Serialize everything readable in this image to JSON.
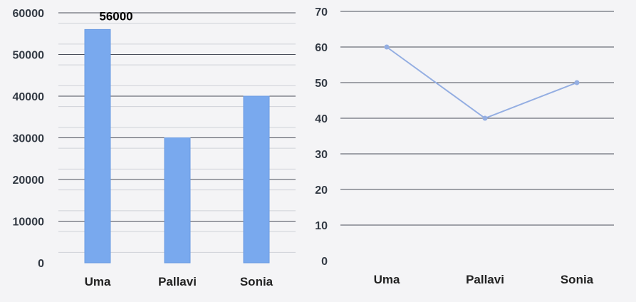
{
  "chart_data": [
    {
      "type": "bar",
      "categories": [
        "Uma",
        "Pallavi",
        "Sonia"
      ],
      "values": [
        56000,
        30000,
        40000
      ],
      "ylim": [
        0,
        60000
      ],
      "yticks": [
        "0",
        "10000",
        "20000",
        "30000",
        "40000",
        "50000",
        "60000"
      ],
      "data_labels": [
        "56000",
        "",
        ""
      ],
      "colors": {
        "bar": "#79a9ee",
        "bar_edge": "#6c9ce3",
        "grid": "#4a4e5a"
      },
      "grid": true,
      "legend": "none"
    },
    {
      "type": "line",
      "categories": [
        "Uma",
        "Pallavi",
        "Sonia"
      ],
      "values": [
        60,
        40,
        50
      ],
      "ylim": [
        0,
        70
      ],
      "yticks": [
        "0",
        "10",
        "20",
        "30",
        "40",
        "50",
        "60",
        "70"
      ],
      "colors": {
        "line": "#94aee2",
        "marker": "#94aee2",
        "grid": "#4a4e5a"
      },
      "grid": true,
      "legend": "none"
    }
  ]
}
